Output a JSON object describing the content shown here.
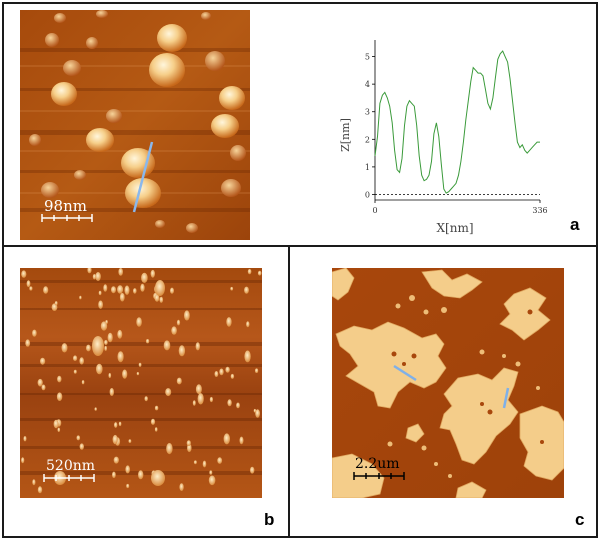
{
  "panels": {
    "a": {
      "letter": "a",
      "scale_bar_label": "98nm",
      "profile": {
        "chart_data": {
          "type": "line",
          "title": "",
          "xlabel": "X[nm]",
          "ylabel": "Z[nm]",
          "xlim": [
            0,
            336
          ],
          "ylim": [
            -0.2,
            5.6
          ],
          "xticks": [
            {
              "value": 0,
              "label": "0"
            },
            {
              "value": 336,
              "label": "336"
            }
          ],
          "yticks": [
            0,
            1,
            2,
            3,
            4,
            5
          ],
          "baseline_y": 0,
          "grid": false,
          "series": [
            {
              "color": "#3a9a3a",
              "x": [
                0,
                5,
                10,
                15,
                20,
                25,
                30,
                35,
                40,
                45,
                50,
                55,
                60,
                65,
                70,
                75,
                80,
                85,
                90,
                95,
                100,
                105,
                110,
                115,
                120,
                125,
                130,
                135,
                140,
                145,
                150,
                155,
                160,
                165,
                170,
                175,
                180,
                185,
                190,
                195,
                200,
                205,
                210,
                215,
                220,
                225,
                230,
                235,
                240,
                245,
                250,
                255,
                260,
                265,
                270,
                275,
                280,
                285,
                290,
                295,
                300,
                305,
                310,
                315,
                320,
                325,
                330,
                336
              ],
              "y": [
                1.4,
                2.1,
                3.3,
                3.6,
                3.7,
                3.5,
                3.2,
                2.6,
                1.6,
                0.9,
                0.8,
                1.3,
                2.5,
                3.2,
                3.4,
                3.3,
                3.2,
                2.5,
                1.4,
                0.7,
                0.5,
                0.55,
                0.7,
                1.2,
                2.2,
                2.6,
                2.1,
                1.1,
                0.2,
                0.05,
                0.1,
                0.2,
                0.3,
                0.4,
                0.7,
                1.2,
                1.9,
                2.7,
                3.4,
                4.1,
                4.6,
                4.5,
                4.4,
                4.4,
                4.3,
                3.8,
                3.3,
                3.1,
                3.5,
                4.2,
                4.9,
                5.1,
                5.2,
                5.0,
                4.8,
                4.2,
                3.4,
                2.6,
                1.9,
                1.7,
                1.8,
                1.6,
                1.5,
                1.6,
                1.7,
                1.8,
                1.9,
                1.9
              ]
            }
          ]
        }
      }
    },
    "b": {
      "letter": "b",
      "scale_bar_label": "520nm"
    },
    "c": {
      "letter": "c",
      "scale_bar_label": "2.2um"
    }
  },
  "colors": {
    "afm_dark": "#5a1e02",
    "afm_mid": "#a54a0c",
    "afm_bright": "#f3c482",
    "afm_peak": "#fff0cc",
    "profile_line": "#7fb0e8",
    "curve": "#3a9a3a"
  }
}
